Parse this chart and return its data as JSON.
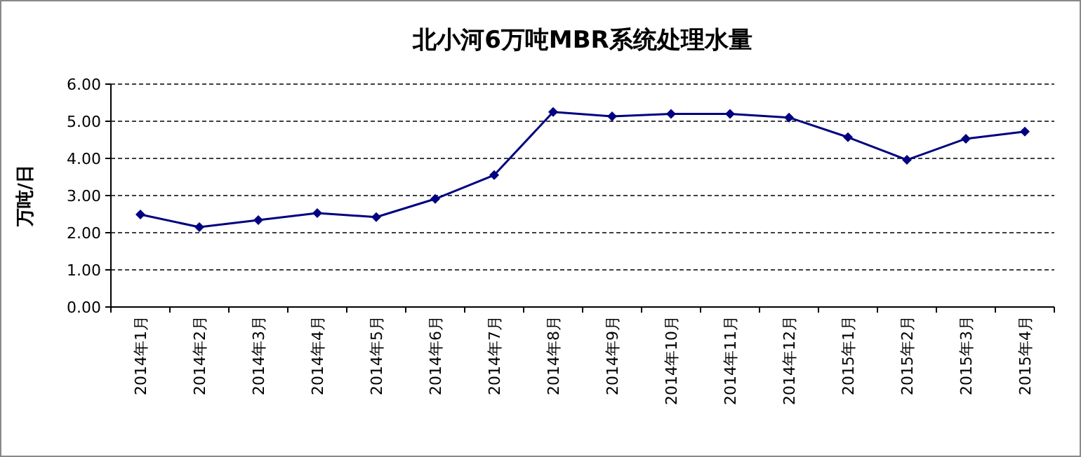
{
  "chart_data": {
    "type": "line",
    "title": "北小河6万吨MBR系统处理水量",
    "ylabel": "万吨/日",
    "categories": [
      "2014年1月",
      "2014年2月",
      "2014年3月",
      "2014年4月",
      "2014年5月",
      "2014年6月",
      "2014年7月",
      "2014年8月",
      "2014年9月",
      "2014年10月",
      "2014年11月",
      "2014年12月",
      "2015年1月",
      "2015年2月",
      "2015年3月",
      "2015年4月"
    ],
    "series": [
      {
        "color": "#000080",
        "values": [
          2.49,
          2.15,
          2.34,
          2.53,
          2.42,
          2.91,
          3.55,
          5.25,
          5.13,
          5.2,
          5.2,
          5.1,
          4.57,
          3.96,
          4.53,
          4.72
        ]
      }
    ],
    "ylim": [
      0,
      6
    ],
    "yticks": [
      {
        "value": 0,
        "label": "0.00"
      },
      {
        "value": 1,
        "label": "1.00"
      },
      {
        "value": 2,
        "label": "2.00"
      },
      {
        "value": 3,
        "label": "3.00"
      },
      {
        "value": 4,
        "label": "4.00"
      },
      {
        "value": 5,
        "label": "5.00"
      },
      {
        "value": 6,
        "label": "6.00"
      }
    ],
    "grid": "y",
    "marker": "diamond",
    "line_style": "solid"
  }
}
